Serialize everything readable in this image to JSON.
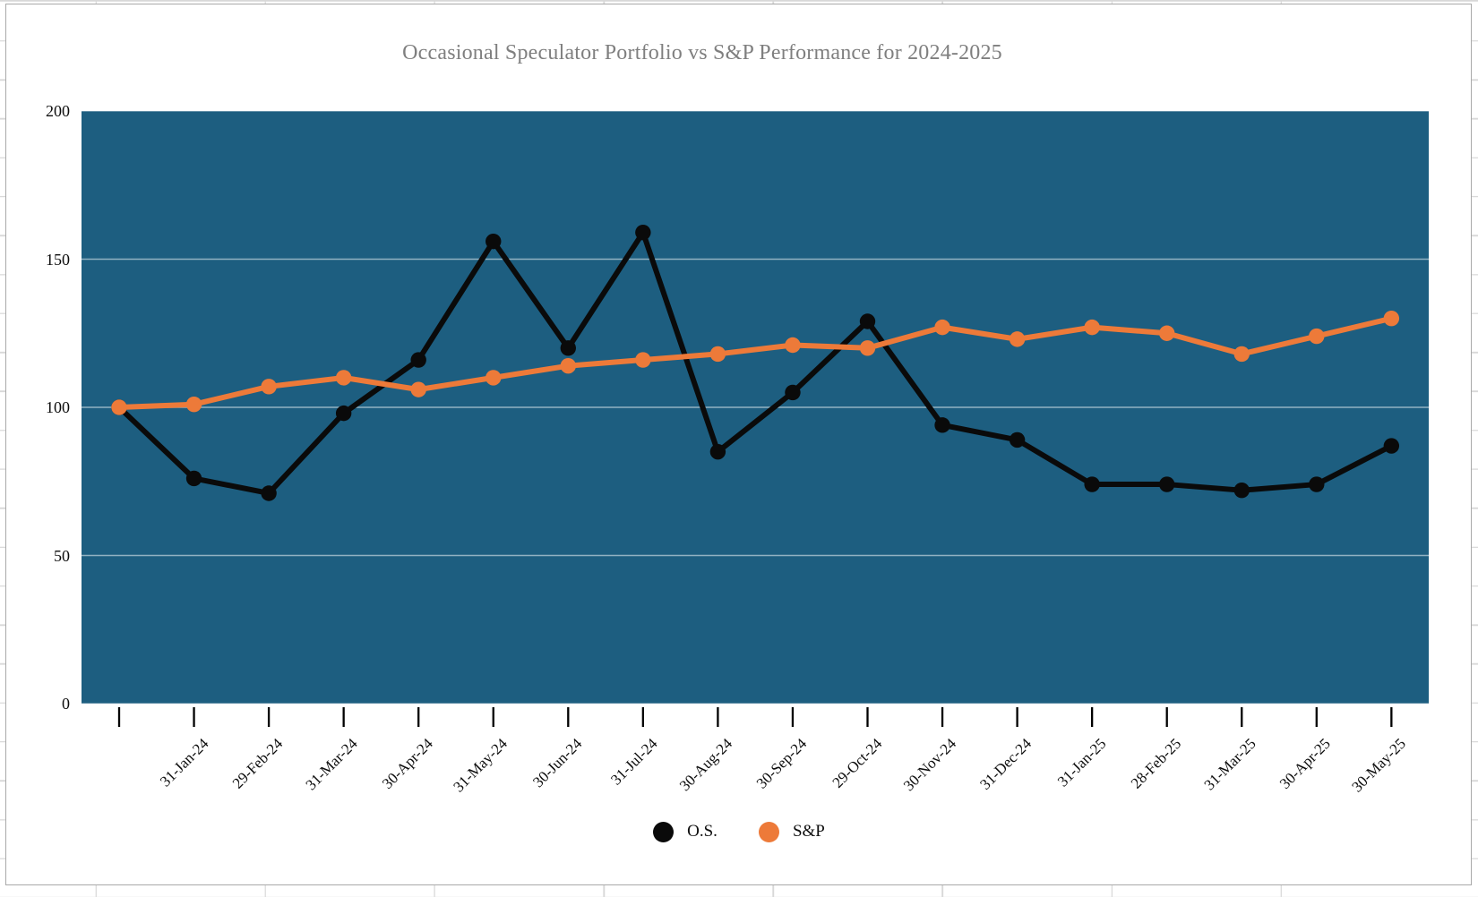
{
  "page": {
    "title": "Occasional Speculator Portfolio vs S&P Performance for 2024-2025"
  },
  "colors": {
    "plot_bg": "#1d5e80",
    "os_series": "#0a0a0a",
    "sp_series": "#ed7a39",
    "plot_gridline": "#ffffff",
    "title_text": "#7f7f7f",
    "axis_text": "#0d0d0d",
    "frame_border": "#a9a9a9",
    "sheet_gridline": "#d8d8d8"
  },
  "chart_data": {
    "type": "line",
    "title": "Occasional Speculator Portfolio vs S&P Performance for 2024-2025",
    "xlabel": "",
    "ylabel": "",
    "grid": "horizontal",
    "legend_position": "bottom",
    "categories": [
      "",
      "31-Jan-24",
      "29-Feb-24",
      "31-Mar-24",
      "30-Apr-24",
      "31-May-24",
      "30-Jun-24",
      "31-Jul-24",
      "30-Aug-24",
      "30-Sep-24",
      "29-Oct-24",
      "30-Nov-24",
      "31-Dec-24",
      "31-Jan-25",
      "28-Feb-25",
      "31-Mar-25",
      "30-Apr-25",
      "30-May-25"
    ],
    "series": [
      {
        "name": "O.S.",
        "color": "#0a0a0a",
        "values": [
          100,
          76,
          71,
          98,
          116,
          156,
          120,
          159,
          85,
          105,
          129,
          94,
          89,
          74,
          74,
          72,
          74,
          87
        ]
      },
      {
        "name": "S&P",
        "color": "#ed7a39",
        "values": [
          100,
          101,
          107,
          110,
          106,
          110,
          114,
          116,
          118,
          121,
          120,
          127,
          123,
          127,
          125,
          118,
          124,
          130
        ]
      }
    ],
    "y_axis": {
      "min": 0,
      "max": 200,
      "tick_step": 50,
      "tick_labels": [
        "0",
        "50",
        "100",
        "150",
        "200"
      ]
    }
  }
}
